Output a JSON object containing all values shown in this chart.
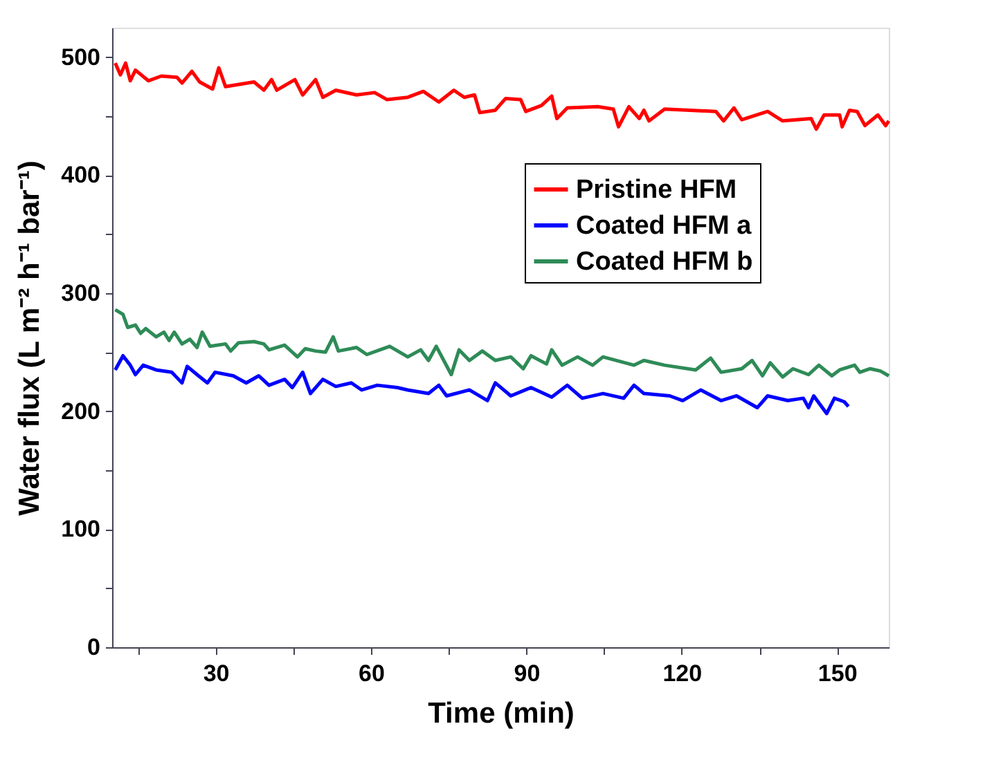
{
  "chart_data": {
    "type": "line",
    "xlabel": "Time (min)",
    "ylabel": "Water flux (L m⁻² h⁻¹ bar⁻¹)",
    "xlim": [
      10,
      160
    ],
    "ylim": [
      0,
      525
    ],
    "xticks": [
      {
        "value": 15,
        "label": null
      },
      30,
      {
        "value": 45,
        "label": null
      },
      60,
      {
        "value": 75,
        "label": null
      },
      90,
      {
        "value": 105,
        "label": null
      },
      120,
      {
        "value": 135,
        "label": null
      },
      150
    ],
    "yticks": [
      0,
      {
        "value": 50,
        "label": null
      },
      100,
      {
        "value": 150,
        "label": null
      },
      200,
      {
        "value": 250,
        "label": null
      },
      300,
      {
        "value": 350,
        "label": null
      },
      400,
      {
        "value": 450,
        "label": null
      },
      500
    ],
    "grid": false,
    "legend": "top right",
    "marker": "none",
    "line_style": "solid",
    "series": [
      {
        "name": "Pristine HFM",
        "color": "#ff0000",
        "x": [
          10.6,
          11.6,
          12.6,
          13.5,
          14.5,
          17.0,
          19.5,
          22.5,
          23.5,
          25.4,
          26.9,
          29.4,
          30.6,
          31.9,
          37.4,
          39.3,
          40.8,
          41.8,
          45.3,
          46.8,
          49.3,
          50.7,
          53.2,
          57.2,
          60.7,
          63.1,
          67.1,
          70.1,
          73.1,
          76.0,
          78.0,
          80.0,
          81.0,
          84.0,
          86.0,
          88.9,
          89.9,
          92.9,
          94.9,
          95.9,
          97.9,
          103.8,
          106.8,
          107.8,
          109.8,
          111.8,
          112.7,
          113.7,
          116.7,
          126.6,
          128.1,
          130.1,
          131.6,
          136.6,
          139.5,
          145.0,
          146.0,
          147.5,
          150.5,
          151.0,
          152.4,
          153.9,
          155.4,
          157.9,
          159.4,
          160
        ],
        "values": [
          495,
          485,
          495,
          480,
          489,
          480,
          484,
          483,
          478,
          488,
          479,
          473,
          491,
          475,
          479,
          472,
          481,
          472,
          481,
          468,
          481,
          466,
          472,
          468,
          470,
          464,
          466,
          471,
          462,
          472,
          466,
          468,
          453,
          455,
          465,
          464,
          454,
          459,
          467,
          448,
          457,
          458,
          456,
          441,
          458,
          448,
          455,
          446,
          456,
          454,
          446,
          457,
          447,
          454,
          446,
          448,
          439,
          451,
          451,
          441,
          455,
          454,
          442,
          451,
          442,
          446
        ]
      },
      {
        "name": "Coated HFM a",
        "color": "#0000ff",
        "x": [
          10.6,
          12.1,
          13.5,
          14.5,
          16.0,
          18.5,
          21.5,
          23.5,
          24.5,
          26.4,
          28.4,
          29.9,
          33.4,
          35.9,
          38.3,
          40.3,
          43.3,
          44.8,
          46.8,
          48.3,
          50.7,
          53.2,
          56.2,
          58.2,
          61.2,
          65.1,
          67.1,
          71.1,
          73.1,
          74.6,
          79.0,
          82.5,
          84.0,
          87.0,
          90.9,
          94.9,
          97.9,
          100.8,
          104.8,
          108.8,
          110.8,
          112.7,
          117.7,
          120.2,
          123.7,
          127.6,
          130.6,
          134.6,
          136.6,
          140.5,
          143.5,
          144.5,
          145.5,
          148.0,
          149.5,
          151.4,
          152.2
        ],
        "values": [
          235,
          247,
          239,
          231,
          239,
          235,
          233,
          224,
          238,
          231,
          224,
          233,
          230,
          224,
          230,
          222,
          227,
          220,
          233,
          215,
          227,
          221,
          224,
          218,
          222,
          220,
          218,
          215,
          222,
          213,
          218,
          209,
          224,
          213,
          220,
          212,
          222,
          211,
          215,
          211,
          222,
          215,
          213,
          209,
          218,
          209,
          213,
          203,
          213,
          209,
          211,
          203,
          213,
          198,
          211,
          208,
          204
        ]
      },
      {
        "name": "Coated HFM b",
        "color": "#2e8b57",
        "x": [
          10.6,
          12.1,
          13.0,
          14.5,
          15.5,
          16.5,
          18.5,
          20.0,
          21.0,
          22.0,
          23.5,
          25.0,
          26.4,
          27.4,
          28.9,
          31.9,
          32.9,
          34.4,
          37.4,
          39.3,
          40.3,
          43.3,
          45.8,
          47.3,
          49.3,
          51.2,
          52.7,
          53.7,
          57.2,
          59.2,
          63.6,
          67.1,
          69.6,
          71.1,
          72.6,
          75.5,
          77.0,
          79.0,
          81.5,
          84.0,
          87.0,
          89.4,
          90.9,
          93.9,
          94.9,
          96.9,
          99.9,
          102.8,
          104.8,
          110.8,
          112.7,
          116.7,
          122.7,
          125.6,
          127.6,
          131.6,
          133.6,
          135.6,
          137.1,
          139.5,
          141.5,
          144.5,
          146.5,
          149.0,
          150.5,
          153.4,
          154.4,
          156.4,
          158.4,
          160
        ],
        "values": [
          286,
          282,
          271,
          273,
          266,
          270,
          263,
          267,
          260,
          267,
          257,
          261,
          254,
          267,
          255,
          257,
          251,
          258,
          259,
          257,
          252,
          256,
          246,
          253,
          251,
          250,
          263,
          251,
          254,
          248,
          255,
          246,
          252,
          243,
          255,
          231,
          252,
          243,
          251,
          243,
          246,
          236,
          247,
          240,
          252,
          239,
          246,
          239,
          246,
          239,
          243,
          239,
          235,
          245,
          233,
          236,
          243,
          230,
          241,
          229,
          236,
          231,
          239,
          230,
          235,
          239,
          233,
          236,
          234,
          230
        ]
      }
    ]
  }
}
